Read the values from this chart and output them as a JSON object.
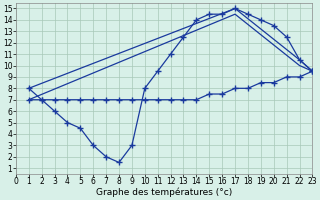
{
  "line1_x": [
    1,
    2,
    3,
    4,
    5,
    6,
    7,
    8,
    9,
    10,
    11,
    12,
    13,
    14,
    15,
    16,
    17,
    18,
    19,
    20,
    21,
    22,
    23
  ],
  "line1_y": [
    8.0,
    7.0,
    6.0,
    5.0,
    4.5,
    3.0,
    2.0,
    1.5,
    3.0,
    8.0,
    9.5,
    11.0,
    12.5,
    14.0,
    14.5,
    14.5,
    15.0,
    14.5,
    14.0,
    13.5,
    12.5,
    10.5,
    9.5
  ],
  "line2_x": [
    1,
    2,
    3,
    4,
    5,
    6,
    7,
    8,
    9,
    10,
    11,
    12,
    13,
    14,
    15,
    16,
    17,
    18,
    19,
    20,
    21,
    22,
    23
  ],
  "line2_y": [
    7.0,
    7.0,
    7.0,
    7.0,
    7.0,
    7.0,
    7.0,
    7.0,
    7.0,
    7.0,
    7.0,
    7.0,
    7.0,
    7.0,
    7.5,
    7.5,
    8.0,
    8.0,
    8.5,
    8.5,
    9.0,
    9.0,
    9.5
  ],
  "line3_x": [
    1,
    17,
    22,
    23
  ],
  "line3_y": [
    8.0,
    15.0,
    10.5,
    9.5
  ],
  "line4_x": [
    1,
    17,
    22,
    23
  ],
  "line4_y": [
    7.0,
    14.5,
    10.0,
    9.5
  ],
  "line_color": "#1a3a9e",
  "bg_color": "#d8f0e8",
  "grid_color": "#a8c8b8",
  "xlabel": "Graphe des températures (°c)",
  "xlim": [
    0,
    23
  ],
  "ylim": [
    1,
    15
  ],
  "xticks": [
    0,
    1,
    2,
    3,
    4,
    5,
    6,
    7,
    8,
    9,
    10,
    11,
    12,
    13,
    14,
    15,
    16,
    17,
    18,
    19,
    20,
    21,
    22,
    23
  ],
  "yticks": [
    1,
    2,
    3,
    4,
    5,
    6,
    7,
    8,
    9,
    10,
    11,
    12,
    13,
    14,
    15
  ],
  "tick_fontsize": 5.5,
  "xlabel_fontsize": 6.5
}
